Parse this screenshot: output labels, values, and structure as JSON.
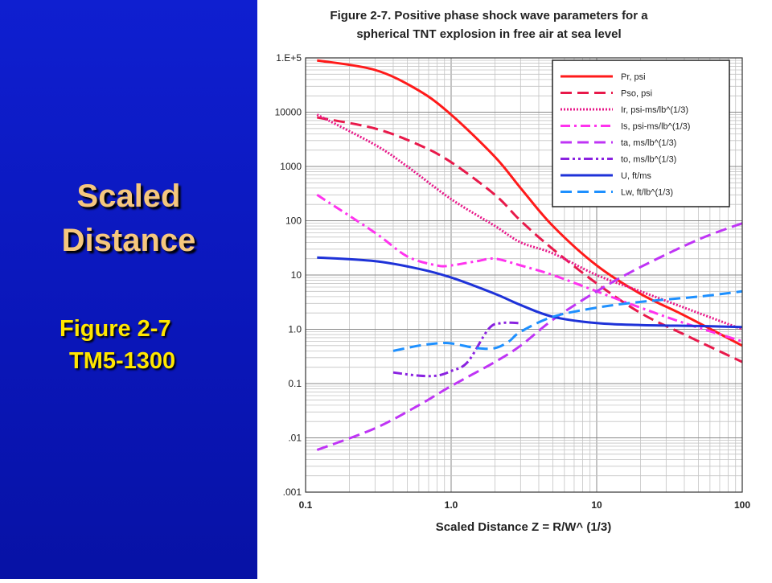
{
  "slide": {
    "title_line1": "Scaled",
    "title_line2": "Distance",
    "figure_label": "Figure 2-7",
    "doc_label": "TM5-1300"
  },
  "colors": {
    "panel_bg": "#0a18c0",
    "title": "#f5c77e",
    "subtitle": "#ffe600"
  },
  "chart_data": {
    "type": "line",
    "title_line1": "Figure 2-7. Positive phase shock wave parameters for a",
    "title_line2": "spherical TNT explosion in free air at sea level",
    "xlabel": "Scaled Distance Z = R/W^ (1/3)",
    "ylabel": "",
    "x_scale": "log",
    "y_scale": "log",
    "xlim": [
      0.1,
      100
    ],
    "ylim": [
      0.001,
      100000
    ],
    "x_ticks": [
      {
        "v": 0.1,
        "label": "0.1"
      },
      {
        "v": 1,
        "label": "1.0"
      },
      {
        "v": 10,
        "label": "10"
      },
      {
        "v": 100,
        "label": "100"
      }
    ],
    "y_ticks": [
      {
        "v": 100000,
        "label": "1.E+5"
      },
      {
        "v": 10000,
        "label": "10000"
      },
      {
        "v": 1000,
        "label": "1000"
      },
      {
        "v": 100,
        "label": "100"
      },
      {
        "v": 10,
        "label": "10"
      },
      {
        "v": 1,
        "label": "1.0"
      },
      {
        "v": 0.1,
        "label": "0.1"
      },
      {
        "v": 0.01,
        "label": ".01"
      },
      {
        "v": 0.001,
        "label": ".001"
      }
    ],
    "grid": true,
    "legend_position": "top-right",
    "series": [
      {
        "name": "Pr, psi",
        "color": "#ff1a1a",
        "dash": "solid",
        "x": [
          0.12,
          0.3,
          0.6,
          1.0,
          2.0,
          3.0,
          5.0,
          10.0,
          20.0,
          40.0,
          100.0
        ],
        "y": [
          90000,
          60000,
          25000,
          9000,
          1500,
          400,
          80,
          15,
          4.5,
          1.8,
          0.5
        ]
      },
      {
        "name": "Pso, psi",
        "color": "#e8194a",
        "dash": "longdash",
        "x": [
          0.12,
          0.3,
          0.6,
          1.0,
          2.0,
          3.0,
          5.0,
          10.0,
          20.0,
          40.0,
          100.0
        ],
        "y": [
          8000,
          5000,
          2500,
          1200,
          300,
          100,
          30,
          7,
          2,
          0.8,
          0.25
        ]
      },
      {
        "name": "Ir, psi-ms/lb^(1/3)",
        "color": "#e8198a",
        "dash": "dotted",
        "x": [
          0.12,
          0.3,
          0.5,
          1.0,
          2.0,
          3.0,
          5.0,
          10.0,
          20.0,
          50.0,
          100.0
        ],
        "y": [
          9000,
          2500,
          1000,
          250,
          80,
          40,
          25,
          10,
          5,
          2,
          1
        ]
      },
      {
        "name": "Is, psi-ms/lb^(1/3)",
        "color": "#ff33ee",
        "dash": "dashdot",
        "x": [
          0.12,
          0.3,
          0.5,
          0.8,
          1.0,
          1.5,
          2.0,
          3.0,
          5.0,
          10.0,
          20.0,
          40.0,
          100.0
        ],
        "y": [
          300,
          60,
          22,
          15,
          15,
          18,
          20,
          15,
          10,
          5,
          2.5,
          1.3,
          0.6
        ]
      },
      {
        "name": "ta, ms/lb^(1/3)",
        "color": "#bf34f5",
        "dash": "longdash",
        "x": [
          0.12,
          0.3,
          0.6,
          1.0,
          2.0,
          3.0,
          5.0,
          10.0,
          20.0,
          50.0,
          100.0
        ],
        "y": [
          0.006,
          0.015,
          0.04,
          0.09,
          0.25,
          0.5,
          1.5,
          5,
          14,
          45,
          90
        ]
      },
      {
        "name": "to, ms/lb^(1/3)",
        "color": "#8a22e0",
        "dash": "dashdotdot",
        "x": [
          0.4,
          0.6,
          0.8,
          1.0,
          1.3,
          1.8,
          2.2,
          3.0
        ],
        "y": [
          0.16,
          0.14,
          0.14,
          0.17,
          0.25,
          1.0,
          1.3,
          1.3
        ]
      },
      {
        "name": "U, ft/ms",
        "color": "#1e32d8",
        "dash": "solid",
        "x": [
          0.12,
          0.3,
          0.6,
          1.0,
          2.0,
          3.0,
          5.0,
          10.0,
          20.0,
          50.0,
          100.0
        ],
        "y": [
          21,
          18,
          13,
          9,
          4.5,
          2.8,
          1.7,
          1.3,
          1.2,
          1.15,
          1.1
        ]
      },
      {
        "name": "Lw, ft/lb^(1/3)",
        "color": "#1e90ff",
        "dash": "longdash",
        "x": [
          0.4,
          0.6,
          0.8,
          1.0,
          1.5,
          2.0,
          2.5,
          3.0,
          5.0,
          10.0,
          20.0,
          50.0,
          100.0
        ],
        "y": [
          0.4,
          0.5,
          0.55,
          0.55,
          0.45,
          0.45,
          0.6,
          0.9,
          1.7,
          2.5,
          3.2,
          4,
          5
        ]
      }
    ]
  }
}
